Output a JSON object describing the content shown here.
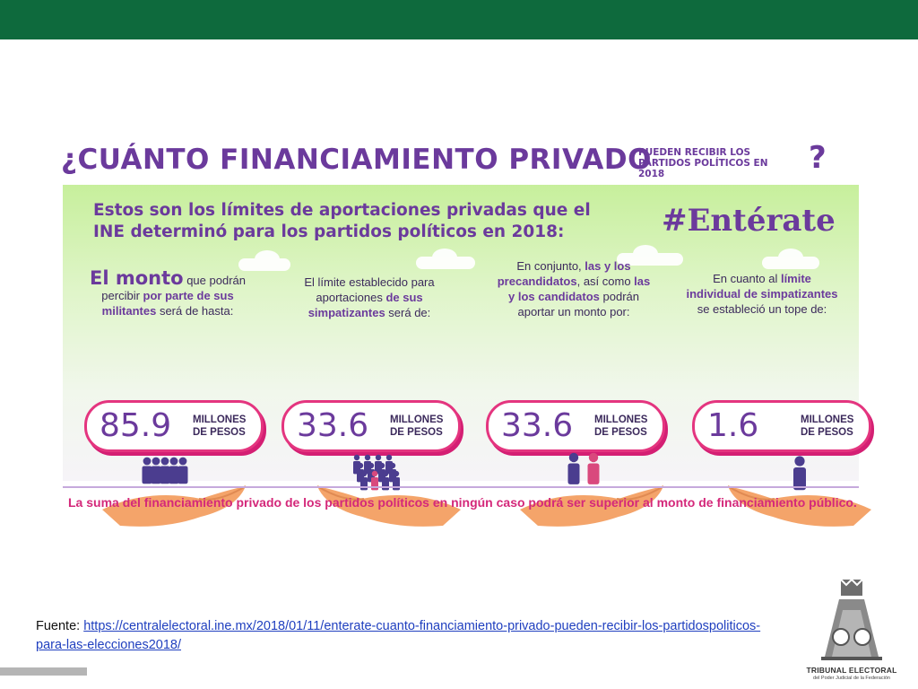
{
  "colors": {
    "header_green": "#0e6a3d",
    "purple": "#6b3a9c",
    "magenta": "#e4357f",
    "link_blue": "#1f3fbf"
  },
  "infographic": {
    "title_main": "¿CUÁNTO FINANCIAMIENTO PRIVADO",
    "title_sub_1": "PUEDEN RECIBIR LOS",
    "title_sub_2": "PARTIDOS POLÍTICOS EN 2018",
    "title_q": "?",
    "intro_line1": "Estos son los límites de aportaciones privadas que el",
    "intro_line2": "INE determinó para los partidos políticos en 2018:",
    "hashtag": "#Entérate",
    "columns": [
      {
        "lines": [
          {
            "parts": [
              {
                "text": "El monto",
                "style": "big"
              },
              {
                "text": " que podrán",
                "style": "normal"
              }
            ]
          },
          {
            "parts": [
              {
                "text": "percibir ",
                "style": "normal"
              },
              {
                "text": "por parte de sus",
                "style": "bold"
              }
            ]
          },
          {
            "parts": [
              {
                "text": "militantes",
                "style": "bold"
              },
              {
                "text": " será de hasta:",
                "style": "normal"
              }
            ]
          }
        ],
        "value": "85.9",
        "unit_1": "MILLONES",
        "unit_2": "DE PESOS",
        "icon": "group-of-people-icon"
      },
      {
        "lines": [
          {
            "parts": [
              {
                "text": "El límite establecido para",
                "style": "normal"
              }
            ]
          },
          {
            "parts": [
              {
                "text": "aportaciones ",
                "style": "normal"
              },
              {
                "text": "de sus",
                "style": "bold"
              }
            ]
          },
          {
            "parts": [
              {
                "text": "simpatizantes",
                "style": "bold"
              },
              {
                "text": " será de:",
                "style": "normal"
              }
            ]
          }
        ],
        "value": "33.6",
        "unit_1": "MILLONES",
        "unit_2": "DE PESOS",
        "icon": "crowd-icon"
      },
      {
        "lines": [
          {
            "parts": [
              {
                "text": "En conjunto, ",
                "style": "normal"
              },
              {
                "text": "las y los",
                "style": "bold"
              }
            ]
          },
          {
            "parts": [
              {
                "text": "precandidatos",
                "style": "bold"
              },
              {
                "text": ", así como ",
                "style": "normal"
              },
              {
                "text": "las",
                "style": "bold"
              }
            ]
          },
          {
            "parts": [
              {
                "text": "y los candidatos",
                "style": "bold"
              },
              {
                "text": " podrán",
                "style": "normal"
              }
            ]
          },
          {
            "parts": [
              {
                "text": "aportar un monto por:",
                "style": "normal"
              }
            ]
          }
        ],
        "value": "33.6",
        "unit_1": "MILLONES",
        "unit_2": "DE PESOS",
        "icon": "man-and-woman-icon"
      },
      {
        "lines": [
          {
            "parts": [
              {
                "text": "En cuanto al ",
                "style": "normal"
              },
              {
                "text": "límite",
                "style": "bold"
              }
            ]
          },
          {
            "parts": [
              {
                "text": "individual de simpatizantes",
                "style": "bold"
              }
            ]
          },
          {
            "parts": [
              {
                "text": "se estableció un tope de:",
                "style": "normal"
              }
            ]
          }
        ],
        "value": "1.6",
        "unit_1": "MILLONES",
        "unit_2": "DE PESOS",
        "icon": "single-person-raising-hand-icon"
      }
    ],
    "footer": "La suma del financiamiento privado de los partidos políticos en ningún caso podrá ser superior al monto de financiamiento público."
  },
  "source": {
    "label": "Fuente: ",
    "url_text": "https://centralelectoral.ine.mx/2018/01/11/enterate-cuanto-financiamiento-privado-pueden-recibir-los-partidospoliticos-para-las-elecciones2018/"
  },
  "logo": {
    "title": "TRIBUNAL ELECTORAL",
    "subtitle": "del Poder Judicial de la Federación",
    "icon": "tribunal-emblem-icon"
  }
}
